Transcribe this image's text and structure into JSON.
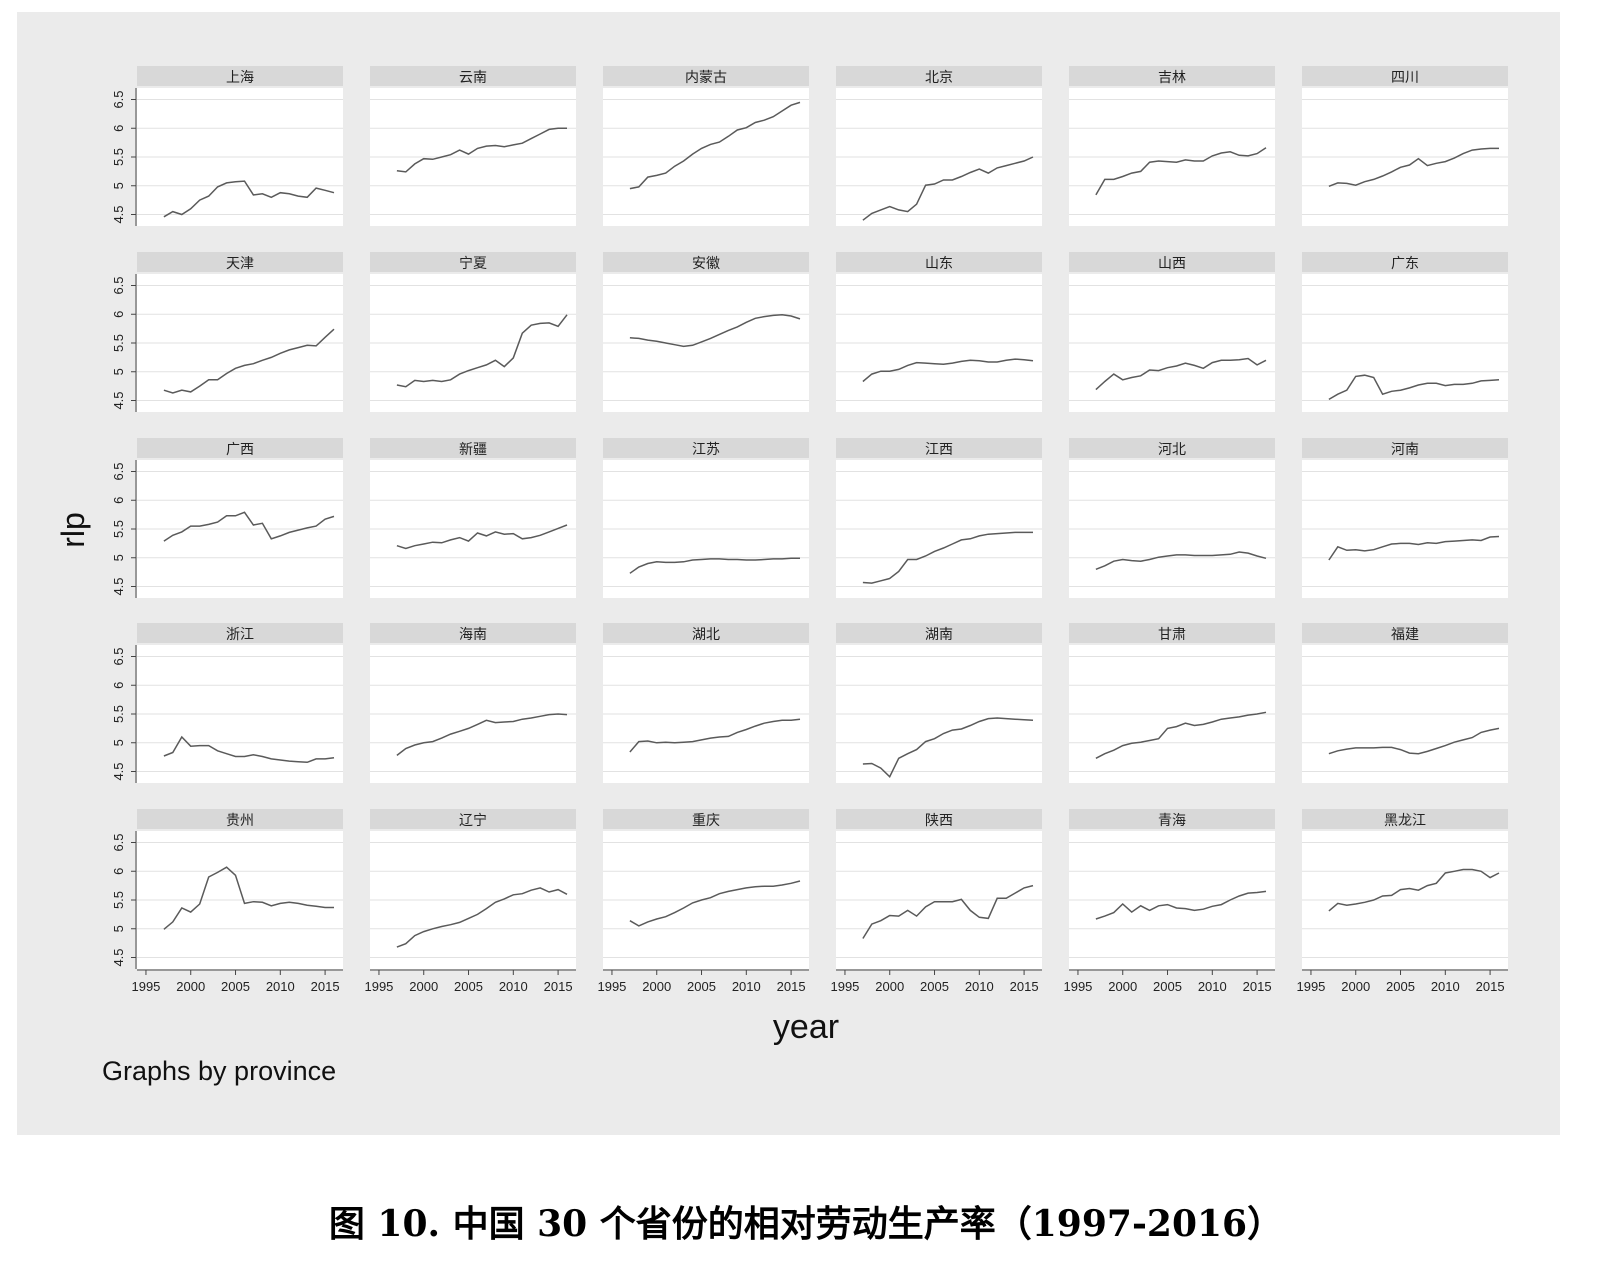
{
  "figure": {
    "ylabel": "rlp",
    "xlabel": "year",
    "note": "Graphs by province",
    "caption": "图 10. 中国 30 个省份的相对劳动生产率（1997-2016）"
  },
  "colors": {
    "background": "#ebebeb",
    "panel": "#ffffff",
    "strip": "#d8d8d8",
    "line": "#5a5a5a",
    "grid": "#e2e2e2"
  },
  "chart_data": {
    "type": "line",
    "facet_by": "province",
    "grid": true,
    "x": [
      1997,
      1998,
      1999,
      2000,
      2001,
      2002,
      2003,
      2004,
      2005,
      2006,
      2007,
      2008,
      2009,
      2010,
      2011,
      2012,
      2013,
      2014,
      2015,
      2016
    ],
    "xticks": [
      1995,
      2000,
      2005,
      2010,
      2015
    ],
    "xticklabels": [
      "1995",
      "2000",
      "2005",
      "2010",
      "2015"
    ],
    "xlim": [
      1994,
      2017
    ],
    "yticks": [
      4.5,
      5,
      5.5,
      6,
      6.5
    ],
    "yticklabels": [
      "4.5",
      "5",
      "5.5",
      "6",
      "6.5"
    ],
    "ylim": [
      4.3,
      6.7
    ],
    "series": [
      {
        "name": "上海",
        "values": [
          4.46,
          4.55,
          4.5,
          4.6,
          4.75,
          4.82,
          4.98,
          5.05,
          5.07,
          5.08,
          4.84,
          4.86,
          4.8,
          4.88,
          4.86,
          4.82,
          4.8,
          4.96,
          4.92,
          4.88
        ]
      },
      {
        "name": "云南",
        "values": [
          5.26,
          5.24,
          5.38,
          5.47,
          5.46,
          5.5,
          5.54,
          5.62,
          5.55,
          5.65,
          5.69,
          5.7,
          5.68,
          5.71,
          5.74,
          5.82,
          5.9,
          5.98,
          6.0,
          6.0
        ]
      },
      {
        "name": "内蒙古",
        "values": [
          4.95,
          4.98,
          5.15,
          5.18,
          5.22,
          5.34,
          5.43,
          5.55,
          5.65,
          5.72,
          5.76,
          5.86,
          5.97,
          6.01,
          6.1,
          6.14,
          6.2,
          6.3,
          6.4,
          6.45
        ]
      },
      {
        "name": "北京",
        "values": [
          4.4,
          4.52,
          4.58,
          4.64,
          4.58,
          4.55,
          4.68,
          5.01,
          5.03,
          5.1,
          5.1,
          5.16,
          5.23,
          5.29,
          5.22,
          5.31,
          5.35,
          5.39,
          5.43,
          5.5
        ]
      },
      {
        "name": "吉林",
        "values": [
          4.84,
          5.11,
          5.11,
          5.16,
          5.22,
          5.25,
          5.41,
          5.43,
          5.42,
          5.41,
          5.45,
          5.43,
          5.43,
          5.52,
          5.57,
          5.59,
          5.53,
          5.52,
          5.56,
          5.66
        ]
      },
      {
        "name": "四川",
        "values": [
          4.99,
          5.05,
          5.04,
          5.01,
          5.07,
          5.11,
          5.17,
          5.24,
          5.32,
          5.36,
          5.47,
          5.35,
          5.39,
          5.42,
          5.48,
          5.56,
          5.62,
          5.64,
          5.65,
          5.65
        ]
      },
      {
        "name": "天津",
        "values": [
          4.68,
          4.63,
          4.68,
          4.65,
          4.75,
          4.86,
          4.86,
          4.97,
          5.06,
          5.11,
          5.14,
          5.2,
          5.25,
          5.32,
          5.38,
          5.42,
          5.46,
          5.45,
          5.6,
          5.74
        ]
      },
      {
        "name": "宁夏",
        "values": [
          4.77,
          4.74,
          4.85,
          4.83,
          4.85,
          4.83,
          4.86,
          4.96,
          5.02,
          5.07,
          5.12,
          5.2,
          5.09,
          5.24,
          5.67,
          5.81,
          5.84,
          5.85,
          5.79,
          5.99
        ]
      },
      {
        "name": "安徽",
        "values": [
          5.59,
          5.58,
          5.55,
          5.53,
          5.5,
          5.47,
          5.44,
          5.46,
          5.52,
          5.58,
          5.65,
          5.72,
          5.78,
          5.86,
          5.93,
          5.96,
          5.98,
          5.99,
          5.97,
          5.92
        ]
      },
      {
        "name": "山东",
        "values": [
          4.83,
          4.96,
          5.01,
          5.01,
          5.04,
          5.11,
          5.16,
          5.15,
          5.14,
          5.13,
          5.15,
          5.18,
          5.2,
          5.19,
          5.17,
          5.17,
          5.2,
          5.22,
          5.21,
          5.19
        ]
      },
      {
        "name": "山西",
        "values": [
          4.69,
          4.83,
          4.96,
          4.86,
          4.9,
          4.93,
          5.03,
          5.02,
          5.07,
          5.1,
          5.15,
          5.11,
          5.06,
          5.16,
          5.2,
          5.2,
          5.21,
          5.23,
          5.12,
          5.2
        ]
      },
      {
        "name": "广东",
        "values": [
          4.52,
          4.61,
          4.68,
          4.92,
          4.94,
          4.9,
          4.61,
          4.66,
          4.68,
          4.72,
          4.77,
          4.8,
          4.8,
          4.76,
          4.78,
          4.78,
          4.8,
          4.84,
          4.85,
          4.86
        ]
      },
      {
        "name": "广西",
        "values": [
          5.29,
          5.39,
          5.45,
          5.55,
          5.55,
          5.58,
          5.62,
          5.73,
          5.73,
          5.79,
          5.57,
          5.6,
          5.33,
          5.38,
          5.44,
          5.48,
          5.52,
          5.55,
          5.67,
          5.72
        ]
      },
      {
        "name": "新疆",
        "values": [
          5.21,
          5.16,
          5.21,
          5.24,
          5.27,
          5.26,
          5.31,
          5.35,
          5.29,
          5.43,
          5.38,
          5.45,
          5.41,
          5.42,
          5.33,
          5.35,
          5.39,
          5.45,
          5.51,
          5.57
        ]
      },
      {
        "name": "江苏",
        "values": [
          4.73,
          4.84,
          4.9,
          4.93,
          4.92,
          4.92,
          4.93,
          4.96,
          4.97,
          4.98,
          4.98,
          4.97,
          4.97,
          4.96,
          4.96,
          4.97,
          4.98,
          4.98,
          4.99,
          4.99
        ]
      },
      {
        "name": "江西",
        "values": [
          4.57,
          4.56,
          4.6,
          4.64,
          4.76,
          4.97,
          4.97,
          5.03,
          5.11,
          5.17,
          5.24,
          5.31,
          5.33,
          5.38,
          5.41,
          5.42,
          5.43,
          5.44,
          5.44,
          5.44
        ]
      },
      {
        "name": "河北",
        "values": [
          4.8,
          4.86,
          4.94,
          4.97,
          4.95,
          4.94,
          4.97,
          5.01,
          5.03,
          5.05,
          5.05,
          5.04,
          5.04,
          5.04,
          5.05,
          5.06,
          5.1,
          5.08,
          5.03,
          4.99
        ]
      },
      {
        "name": "河南",
        "values": [
          4.96,
          5.19,
          5.13,
          5.14,
          5.12,
          5.14,
          5.19,
          5.24,
          5.25,
          5.25,
          5.23,
          5.26,
          5.25,
          5.28,
          5.29,
          5.3,
          5.31,
          5.3,
          5.36,
          5.37
        ]
      },
      {
        "name": "浙江",
        "values": [
          4.77,
          4.83,
          5.1,
          4.94,
          4.95,
          4.95,
          4.86,
          4.81,
          4.76,
          4.76,
          4.79,
          4.76,
          4.72,
          4.7,
          4.68,
          4.67,
          4.66,
          4.72,
          4.72,
          4.74
        ]
      },
      {
        "name": "海南",
        "values": [
          4.78,
          4.9,
          4.96,
          5.0,
          5.02,
          5.08,
          5.15,
          5.2,
          5.25,
          5.32,
          5.39,
          5.35,
          5.36,
          5.37,
          5.41,
          5.43,
          5.46,
          5.49,
          5.5,
          5.49
        ]
      },
      {
        "name": "湖北",
        "values": [
          4.84,
          5.02,
          5.03,
          5.0,
          5.01,
          5.0,
          5.01,
          5.02,
          5.05,
          5.08,
          5.1,
          5.11,
          5.18,
          5.23,
          5.29,
          5.34,
          5.37,
          5.39,
          5.39,
          5.41
        ]
      },
      {
        "name": "湖南",
        "values": [
          4.63,
          4.64,
          4.56,
          4.41,
          4.73,
          4.81,
          4.88,
          5.02,
          5.07,
          5.16,
          5.22,
          5.24,
          5.3,
          5.37,
          5.42,
          5.43,
          5.42,
          5.41,
          5.4,
          5.39
        ]
      },
      {
        "name": "甘肃",
        "values": [
          4.73,
          4.81,
          4.87,
          4.95,
          4.99,
          5.01,
          5.04,
          5.07,
          5.25,
          5.28,
          5.34,
          5.3,
          5.32,
          5.36,
          5.41,
          5.43,
          5.45,
          5.48,
          5.5,
          5.53
        ]
      },
      {
        "name": "福建",
        "values": [
          4.81,
          4.86,
          4.89,
          4.91,
          4.91,
          4.91,
          4.92,
          4.92,
          4.88,
          4.82,
          4.81,
          4.85,
          4.9,
          4.95,
          5.01,
          5.05,
          5.09,
          5.18,
          5.22,
          5.25
        ]
      },
      {
        "name": "贵州",
        "values": [
          4.99,
          5.12,
          5.36,
          5.29,
          5.43,
          5.9,
          5.98,
          6.07,
          5.93,
          5.44,
          5.47,
          5.46,
          5.4,
          5.44,
          5.46,
          5.44,
          5.41,
          5.39,
          5.37,
          5.37
        ]
      },
      {
        "name": "辽宁",
        "values": [
          4.68,
          4.74,
          4.88,
          4.95,
          5.0,
          5.04,
          5.07,
          5.11,
          5.18,
          5.25,
          5.35,
          5.46,
          5.52,
          5.59,
          5.61,
          5.67,
          5.71,
          5.64,
          5.68,
          5.6
        ]
      },
      {
        "name": "重庆",
        "values": [
          5.14,
          5.05,
          5.12,
          5.17,
          5.21,
          5.28,
          5.36,
          5.45,
          5.5,
          5.54,
          5.61,
          5.65,
          5.68,
          5.71,
          5.73,
          5.74,
          5.74,
          5.76,
          5.79,
          5.83
        ]
      },
      {
        "name": "陕西",
        "values": [
          4.83,
          5.08,
          5.14,
          5.23,
          5.22,
          5.32,
          5.22,
          5.38,
          5.47,
          5.47,
          5.47,
          5.51,
          5.32,
          5.2,
          5.18,
          5.53,
          5.53,
          5.62,
          5.71,
          5.75
        ]
      },
      {
        "name": "青海",
        "values": [
          5.17,
          5.22,
          5.28,
          5.43,
          5.29,
          5.4,
          5.32,
          5.4,
          5.42,
          5.36,
          5.35,
          5.32,
          5.34,
          5.39,
          5.42,
          5.5,
          5.57,
          5.62,
          5.63,
          5.65
        ]
      },
      {
        "name": "黑龙江",
        "values": [
          5.31,
          5.44,
          5.41,
          5.43,
          5.46,
          5.5,
          5.57,
          5.58,
          5.68,
          5.7,
          5.67,
          5.75,
          5.79,
          5.97,
          6.0,
          6.03,
          6.03,
          6.0,
          5.89,
          5.97
        ]
      }
    ]
  }
}
